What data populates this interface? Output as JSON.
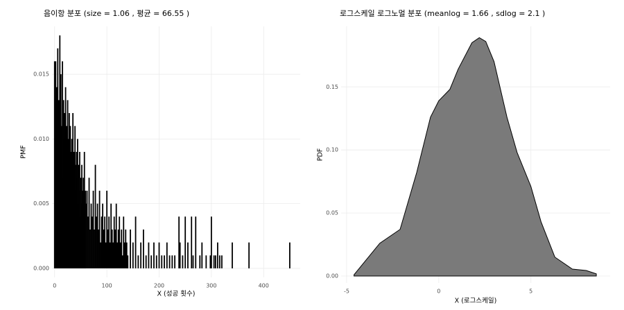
{
  "chart_data": [
    {
      "type": "bar",
      "title": "음이항 분포 (size = 1.06 , 평균 = 66.55 )",
      "x_label": "X (성공 횟수)",
      "y_label": "PMF",
      "color": "#000000",
      "grid": true,
      "x": [
        0,
        1,
        2,
        3,
        4,
        5,
        6,
        7,
        8,
        9,
        10,
        11,
        12,
        13,
        14,
        15,
        16,
        17,
        18,
        19,
        20,
        21,
        22,
        23,
        24,
        25,
        26,
        27,
        28,
        29,
        30,
        31,
        32,
        33,
        34,
        35,
        36,
        37,
        38,
        39,
        40,
        41,
        42,
        43,
        44,
        45,
        46,
        47,
        48,
        49,
        50,
        51,
        52,
        53,
        54,
        55,
        56,
        57,
        58,
        59,
        60,
        62,
        64,
        66,
        68,
        70,
        72,
        74,
        76,
        78,
        80,
        82,
        84,
        86,
        88,
        90,
        92,
        94,
        96,
        98,
        100,
        102,
        104,
        106,
        108,
        110,
        112,
        114,
        116,
        118,
        120,
        122,
        124,
        126,
        128,
        130,
        132,
        134,
        136,
        138,
        140,
        145,
        150,
        155,
        160,
        165,
        170,
        175,
        180,
        185,
        190,
        195,
        200,
        205,
        210,
        215,
        220,
        225,
        230,
        238,
        240,
        245,
        250,
        255,
        262,
        265,
        270,
        278,
        282,
        290,
        298,
        300,
        305,
        308,
        312,
        316,
        320,
        340,
        372,
        450
      ],
      "values": [
        0.016,
        0.012,
        0.016,
        0.009,
        0.014,
        0.011,
        0.017,
        0.01,
        0.013,
        0.008,
        0.018,
        0.012,
        0.015,
        0.009,
        0.011,
        0.016,
        0.007,
        0.013,
        0.01,
        0.012,
        0.008,
        0.014,
        0.009,
        0.011,
        0.006,
        0.013,
        0.01,
        0.008,
        0.012,
        0.007,
        0.011,
        0.009,
        0.006,
        0.01,
        0.008,
        0.012,
        0.007,
        0.009,
        0.005,
        0.011,
        0.008,
        0.006,
        0.009,
        0.007,
        0.01,
        0.005,
        0.008,
        0.006,
        0.009,
        0.004,
        0.007,
        0.005,
        0.008,
        0.006,
        0.004,
        0.007,
        0.005,
        0.009,
        0.004,
        0.006,
        0.005,
        0.006,
        0.004,
        0.007,
        0.003,
        0.005,
        0.004,
        0.006,
        0.003,
        0.008,
        0.004,
        0.005,
        0.003,
        0.006,
        0.002,
        0.004,
        0.005,
        0.003,
        0.004,
        0.002,
        0.006,
        0.003,
        0.004,
        0.002,
        0.005,
        0.003,
        0.002,
        0.004,
        0.003,
        0.005,
        0.002,
        0.003,
        0.004,
        0.002,
        0.003,
        0.001,
        0.004,
        0.002,
        0.003,
        0.002,
        0.001,
        0.003,
        0.002,
        0.004,
        0.001,
        0.002,
        0.003,
        0.001,
        0.002,
        0.001,
        0.002,
        0.001,
        0.002,
        0.001,
        0.001,
        0.002,
        0.001,
        0.001,
        0.001,
        0.004,
        0.002,
        0.001,
        0.004,
        0.002,
        0.004,
        0.001,
        0.004,
        0.001,
        0.002,
        0.001,
        0.001,
        0.004,
        0.001,
        0.001,
        0.002,
        0.001,
        0.001,
        0.002,
        0.002,
        0.002
      ],
      "xlim": [
        -5,
        470
      ],
      "xticks": [
        0,
        100,
        200,
        300,
        400
      ],
      "ylim": [
        -0.0007,
        0.0187
      ],
      "yticks": [
        {
          "value": 0,
          "label": "0.000"
        },
        {
          "value": 0.005,
          "label": "0.005"
        },
        {
          "value": 0.01,
          "label": "0.010"
        },
        {
          "value": 0.015,
          "label": "0.015"
        }
      ]
    },
    {
      "type": "area",
      "title": "로그스케일 로그노멀 분포 (meanlog = 1.66 , sdlog = 2.1 )",
      "x_label": "X (로그스케일)",
      "y_label": "PDF",
      "color": "#7a7a7a",
      "grid": true,
      "x": [
        -4.6,
        -3.2,
        -2.1,
        -1.2,
        -0.45,
        0,
        0.6,
        1.05,
        1.8,
        2.2,
        2.55,
        3.0,
        3.7,
        4.25,
        5.0,
        5.55,
        6.3,
        7.25,
        8.0,
        8.55
      ],
      "values": [
        0.001,
        0.026,
        0.037,
        0.082,
        0.126,
        0.139,
        0.148,
        0.164,
        0.185,
        0.189,
        0.186,
        0.17,
        0.126,
        0.098,
        0.071,
        0.043,
        0.015,
        0.0055,
        0.0044,
        0.0017
      ],
      "xlim": [
        -5.3,
        9.3
      ],
      "xticks": [
        -5,
        0,
        5
      ],
      "ylim": [
        -0.0055,
        0.198
      ],
      "yticks": [
        {
          "value": 0,
          "label": "0.00"
        },
        {
          "value": 0.05,
          "label": "0.05"
        },
        {
          "value": 0.1,
          "label": "0.10"
        },
        {
          "value": 0.15,
          "label": "0.15"
        }
      ]
    }
  ]
}
